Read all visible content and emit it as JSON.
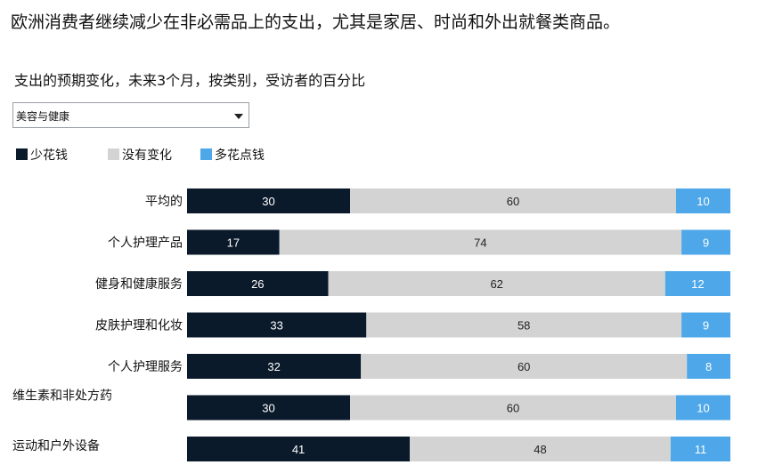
{
  "title": "欧洲消费者继续减少在非必需品上的支出，尤其是家居、时尚和外出就餐类商品。",
  "subtitle": "支出的预期变化，未来3个月，按类别，受访者的百分比",
  "dropdown": {
    "selected": "美容与健康"
  },
  "icons": {
    "dropdown_arrow": "chevron-down-icon"
  },
  "colors": {
    "less": "#0b1a2b",
    "no_change": "#d3d3d3",
    "more": "#4ea7e8"
  },
  "legend": [
    {
      "key": "less",
      "label": "少花钱",
      "color": "#0b1a2b"
    },
    {
      "key": "no_change",
      "label": "没有变化",
      "color": "#d3d3d3"
    },
    {
      "key": "more",
      "label": "多花点钱",
      "color": "#4ea7e8"
    }
  ],
  "chart_data": {
    "type": "bar",
    "orientation": "horizontal",
    "stacked": true,
    "categories": [
      "平均的",
      "个人护理产品",
      "健身和健康服务",
      "皮肤护理和化妆",
      "个人护理服务",
      "维生素和非处方药",
      "运动和户外设备"
    ],
    "series": [
      {
        "name": "少花钱",
        "values": [
          30,
          17,
          26,
          33,
          32,
          30,
          41
        ]
      },
      {
        "name": "没有变化",
        "values": [
          60,
          74,
          62,
          58,
          60,
          60,
          48
        ]
      },
      {
        "name": "多花点钱",
        "values": [
          10,
          9,
          12,
          9,
          8,
          10,
          11
        ]
      }
    ],
    "xlim": [
      0,
      100
    ],
    "grid": false,
    "legend_position": "top-left"
  }
}
